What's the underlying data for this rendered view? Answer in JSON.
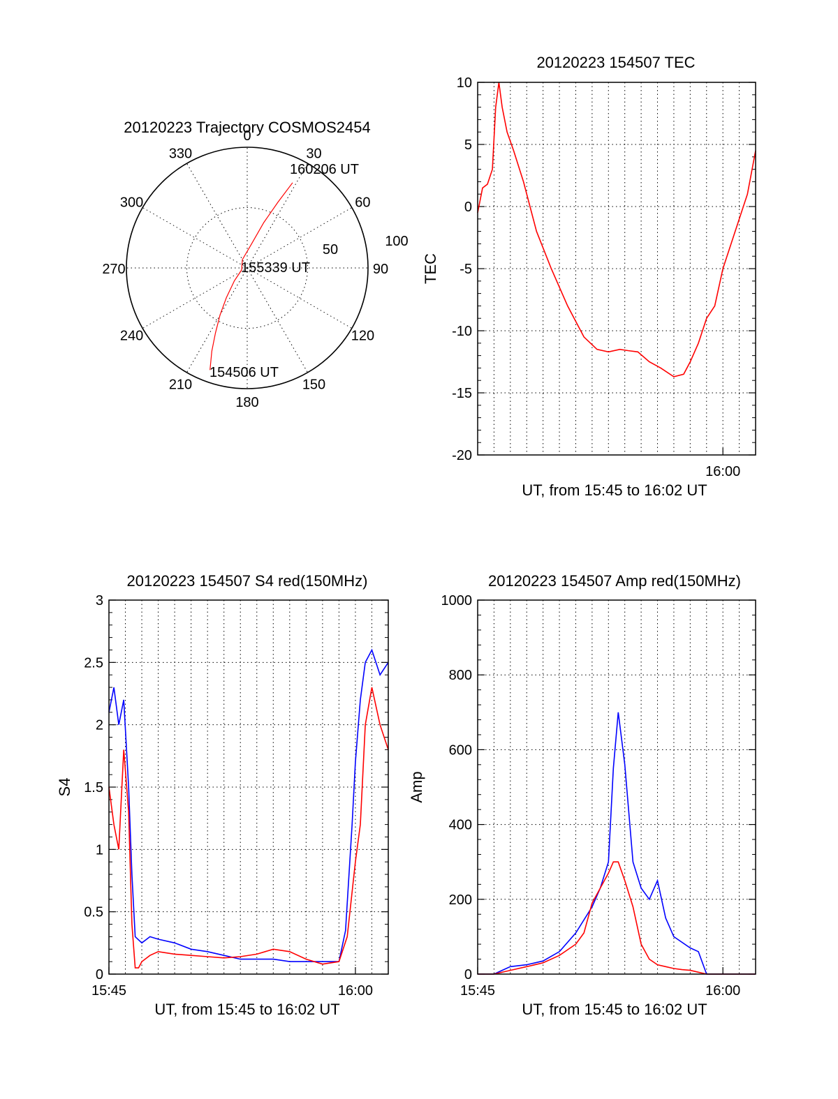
{
  "colors": {
    "red": "#ff0000",
    "blue": "#0000ff",
    "axis": "#000000"
  },
  "chart_data": [
    {
      "type": "polar",
      "title": "20120223 Trajectory COSMOS2454",
      "angle_labels": [
        "0",
        "30",
        "60",
        "90",
        "120",
        "150",
        "180",
        "210",
        "240",
        "270",
        "300",
        "330"
      ],
      "radius_labels": [
        "50",
        "100"
      ],
      "rlim": [
        0,
        100
      ],
      "grid": true,
      "series": [
        {
          "color": "#ff0000",
          "azimuth_deg": [
            200,
            203,
            206,
            210,
            215,
            225,
            250,
            330,
            10,
            20,
            25,
            28
          ],
          "radius": [
            90,
            75,
            60,
            45,
            30,
            15,
            5,
            8,
            20,
            40,
            60,
            80
          ]
        }
      ],
      "annotations": [
        "160206 UT",
        "155339 UT",
        "154506 UT"
      ]
    },
    {
      "type": "line",
      "title": "20120223 154507 TEC",
      "xlabel": "UT, from 15:45 to 16:02 UT",
      "ylabel": "TEC",
      "xlim": [
        0,
        17
      ],
      "ylim": [
        -20,
        10
      ],
      "yticks": [
        "-20",
        "-15",
        "-10",
        "-5",
        "0",
        "5",
        "10"
      ],
      "xticks": [
        {
          "x": 15,
          "label": "16:00"
        }
      ],
      "grid": true,
      "series": [
        {
          "color": "#ff0000",
          "x": [
            0,
            0.3,
            0.6,
            0.9,
            1.1,
            1.3,
            1.5,
            1.8,
            2.2,
            2.8,
            3.6,
            4.5,
            5.5,
            6.5,
            7.3,
            8.0,
            8.7,
            9.2,
            9.8,
            10.5,
            11.2,
            12.0,
            12.6,
            13.0,
            13.5,
            14.0,
            14.5,
            15.0,
            15.5,
            16.0,
            16.5,
            17.0
          ],
          "y": [
            -0.5,
            1.5,
            1.8,
            3,
            8,
            10,
            8,
            6,
            4.5,
            2,
            -2,
            -5,
            -8,
            -10.5,
            -11.5,
            -11.7,
            -11.5,
            -11.6,
            -11.7,
            -12.5,
            -13,
            -13.7,
            -13.5,
            -12.5,
            -11,
            -9,
            -8,
            -5,
            -3,
            -1,
            1,
            4.5
          ]
        }
      ]
    },
    {
      "type": "line",
      "title": "20120223 154507 S4 red(150MHz)",
      "xlabel": "UT, from 15:45 to 16:02 UT",
      "ylabel": "S4",
      "xlim": [
        0,
        17
      ],
      "ylim": [
        0,
        3
      ],
      "yticks": [
        "0",
        "0.5",
        "1",
        "1.5",
        "2",
        "2.5",
        "3"
      ],
      "xticks": [
        {
          "x": 0,
          "label": "15:45"
        },
        {
          "x": 15,
          "label": "16:00"
        }
      ],
      "grid": true,
      "series": [
        {
          "color": "#0000ff",
          "x": [
            0,
            0.3,
            0.6,
            0.9,
            1.2,
            1.4,
            1.6,
            2.0,
            2.5,
            3.0,
            4.0,
            5.0,
            6.0,
            7.0,
            8.0,
            9.0,
            10.0,
            11.0,
            12.0,
            13.0,
            14.0,
            14.4,
            14.8,
            15.0,
            15.3,
            15.6,
            16.0,
            16.5,
            17.0
          ],
          "y": [
            2.1,
            2.3,
            2.0,
            2.2,
            1.5,
            0.8,
            0.3,
            0.25,
            0.3,
            0.28,
            0.25,
            0.2,
            0.18,
            0.15,
            0.12,
            0.12,
            0.12,
            0.1,
            0.1,
            0.1,
            0.1,
            0.35,
            1.2,
            1.7,
            2.2,
            2.5,
            2.6,
            2.4,
            2.5
          ]
        },
        {
          "color": "#ff0000",
          "x": [
            0,
            0.3,
            0.6,
            0.9,
            1.2,
            1.4,
            1.6,
            1.8,
            2.0,
            2.5,
            3.0,
            4.0,
            5.0,
            6.0,
            7.0,
            8.0,
            9.0,
            10.0,
            11.0,
            12.0,
            13.0,
            14.0,
            14.5,
            15.0,
            15.3,
            15.6,
            16.0,
            16.5,
            17.0
          ],
          "y": [
            1.5,
            1.2,
            1.0,
            1.8,
            1.3,
            0.4,
            0.05,
            0.05,
            0.1,
            0.15,
            0.18,
            0.16,
            0.15,
            0.14,
            0.13,
            0.14,
            0.16,
            0.2,
            0.18,
            0.12,
            0.08,
            0.1,
            0.3,
            0.9,
            1.2,
            2.0,
            2.3,
            2.0,
            1.8
          ]
        }
      ]
    },
    {
      "type": "line",
      "title": "20120223 154507 Amp red(150MHz)",
      "xlabel": "UT, from 15:45 to 16:02 UT",
      "ylabel": "Amp",
      "xlim": [
        0,
        17
      ],
      "ylim": [
        0,
        1000
      ],
      "yticks": [
        "0",
        "200",
        "400",
        "600",
        "800",
        "1000"
      ],
      "xticks": [
        {
          "x": 0,
          "label": "15:45"
        },
        {
          "x": 15,
          "label": "16:00"
        }
      ],
      "grid": true,
      "series": [
        {
          "color": "#0000ff",
          "x": [
            0,
            1.0,
            1.5,
            2.0,
            3.0,
            4.0,
            5.0,
            6.0,
            7.0,
            7.5,
            8.0,
            8.3,
            8.6,
            9.0,
            9.5,
            10.0,
            10.5,
            11.0,
            11.5,
            12.0,
            13.0,
            13.5,
            14.0,
            17.0
          ],
          "y": [
            0,
            0,
            10,
            20,
            25,
            35,
            60,
            110,
            180,
            230,
            300,
            550,
            700,
            560,
            300,
            230,
            200,
            250,
            150,
            100,
            70,
            60,
            0,
            0
          ]
        },
        {
          "color": "#ff0000",
          "x": [
            0,
            1.0,
            2.0,
            3.0,
            4.0,
            5.0,
            6.0,
            6.5,
            7.0,
            7.5,
            8.0,
            8.3,
            8.6,
            9.0,
            9.5,
            10.0,
            10.5,
            11.0,
            11.5,
            12.0,
            12.5,
            13.0,
            13.5,
            14.0,
            17.0
          ],
          "y": [
            0,
            0,
            10,
            20,
            30,
            50,
            80,
            110,
            190,
            230,
            270,
            300,
            300,
            250,
            180,
            80,
            40,
            25,
            20,
            15,
            12,
            10,
            5,
            0,
            0
          ]
        }
      ]
    }
  ]
}
